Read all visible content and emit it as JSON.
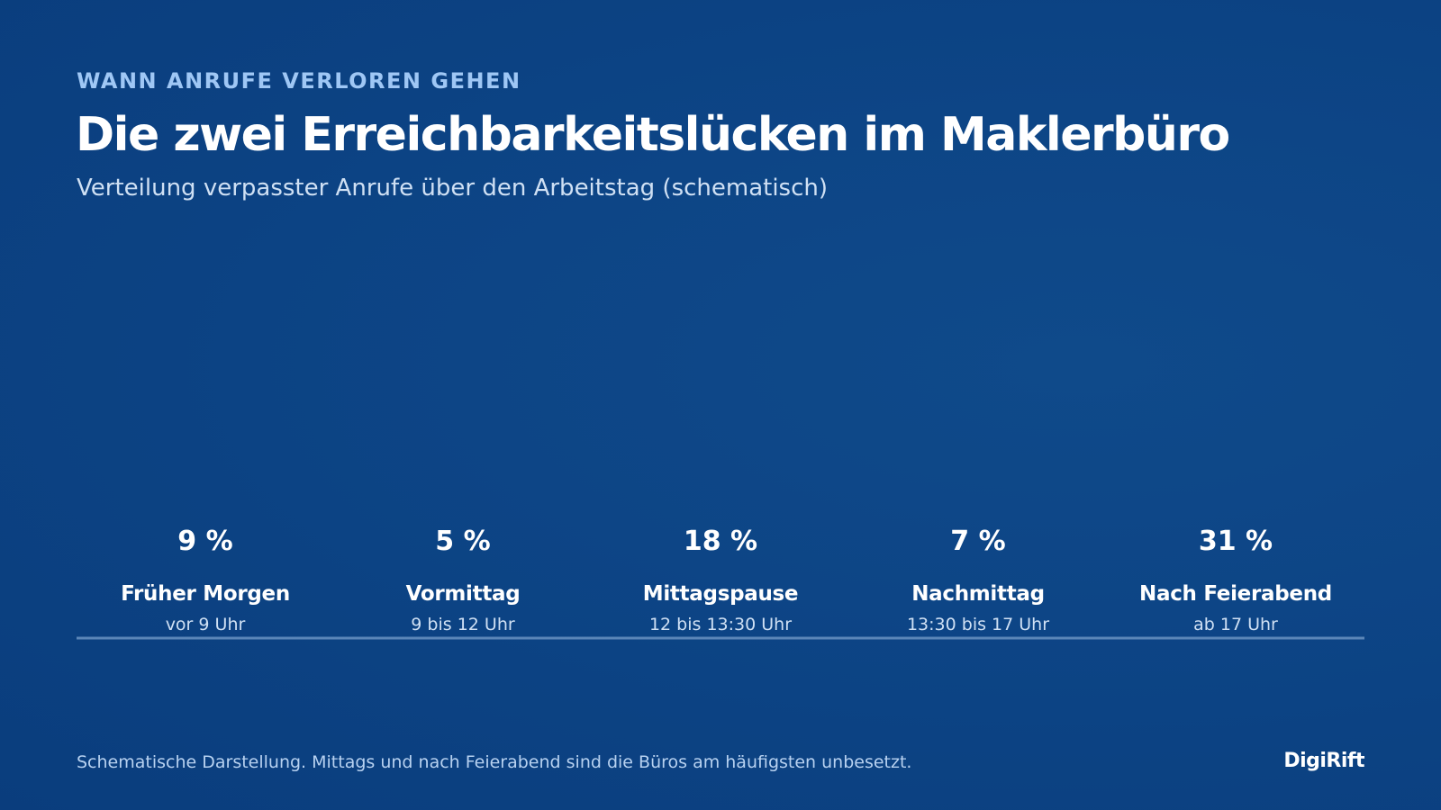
{
  "header": {
    "eyebrow": "WANN ANRUFE VERLOREN GEHEN",
    "title": "Die zwei Erreichbarkeitslücken im Maklerbüro",
    "subtitle": "Verteilung verpasster Anrufe über den Arbeitstag (schematisch)"
  },
  "chart_data": {
    "type": "bar",
    "title": "Die zwei Erreichbarkeitslücken im Maklerbüro",
    "subtitle": "Verteilung verpasster Anrufe über den Arbeitstag (schematisch)",
    "categories": [
      "Früher Morgen",
      "Vormittag",
      "Mittagspause",
      "Nachmittag",
      "Nach Feierabend"
    ],
    "sublabels": [
      "vor 9 Uhr",
      "9 bis 12 Uhr",
      "12 bis 13:30 Uhr",
      "13:30 bis 17 Uhr",
      "ab 17 Uhr"
    ],
    "values": [
      9,
      5,
      18,
      7,
      31
    ],
    "value_labels": [
      "9 %",
      "5 %",
      "18 %",
      "7 %",
      "31 %"
    ],
    "unit": "%",
    "xlabel": "",
    "ylabel": "",
    "grid": false,
    "legend": "none"
  },
  "footer": {
    "note": "Schematische Darstellung. Mittags und nach Feierabend sind die Büros am häufigsten unbesetzt.",
    "brand": "DigiRift"
  },
  "colors": {
    "background": "#0d4586",
    "eyebrow": "#9fc7f5",
    "baseline": "#5b86b8",
    "label": "#ffffff",
    "sublabel": "#cfe0f4"
  }
}
